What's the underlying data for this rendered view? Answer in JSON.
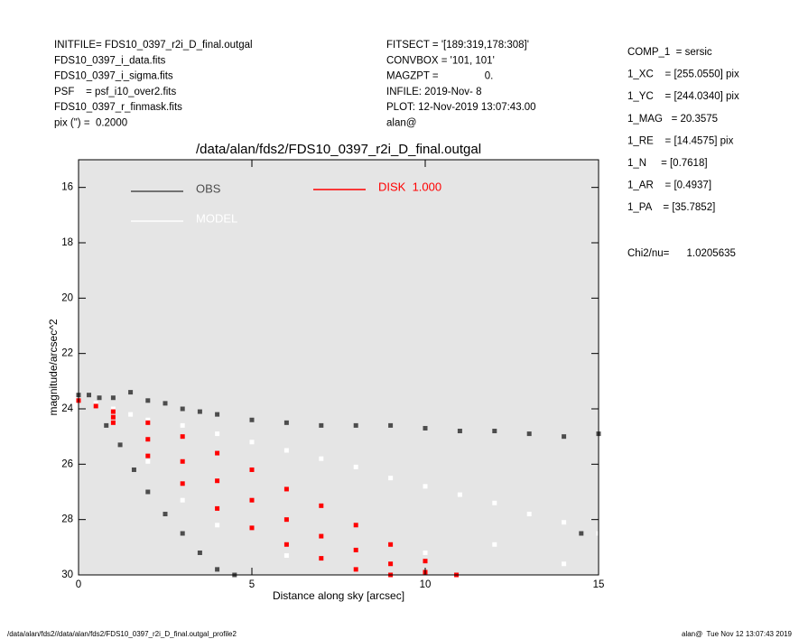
{
  "header": {
    "left": [
      "INITFILE= FDS10_0397_r2i_D_final.outgal",
      "FDS10_0397_i_data.fits",
      "FDS10_0397_i_sigma.fits",
      "PSF    = psf_i10_over2.fits",
      "FDS10_0397_r_finmask.fits",
      "pix (\") =  0.2000"
    ],
    "middle": [
      "FITSECT = '[189:319,178:308]'",
      "CONVBOX = '101, 101'",
      "MAGZPT =                0.",
      "INFILE: 2019-Nov- 8",
      "PLOT: 12-Nov-2019 13:07:43.00",
      "alan@"
    ],
    "right": [
      "COMP_1  = sersic",
      "1_XC    = [255.0550] pix",
      "1_YC    = [244.0340] pix",
      "1_MAG   = 20.3575",
      "1_RE    = [14.4575] pix",
      "1_N     = [0.7618]",
      "1_AR    = [0.4937]",
      "1_PA    = [35.7852]"
    ],
    "chi2": "Chi2/nu=      1.0205635"
  },
  "footer": {
    "left": "/data/alan/fds2//data/alan/fds2/FDS10_0397_r2i_D_final.outgal_profile2",
    "right": "alan@  Tue Nov 12 13:07:43 2019"
  },
  "chart_data": {
    "type": "scatter",
    "title": "/data/alan/fds2/FDS10_0397_r2i_D_final.outgal",
    "x_label": "Distance along sky [arcsec]",
    "y_label": "magnitude/arcsec^2",
    "xlim": [
      0,
      15
    ],
    "ylim": [
      30,
      15
    ],
    "xticks": [
      0,
      5,
      10,
      15
    ],
    "yticks": [
      16,
      18,
      20,
      22,
      24,
      26,
      28,
      30
    ],
    "background": "#e5e5e5",
    "series": [
      {
        "name": "OBS",
        "color": "#4d4d4d",
        "x": [
          0,
          0.3,
          0.6,
          1,
          1.5,
          2,
          2.5,
          3,
          3.5,
          4,
          5,
          6,
          7,
          8,
          9,
          10,
          11,
          12,
          13,
          14,
          15,
          0.8,
          1.2,
          1.6,
          2,
          2.5,
          3,
          3.5,
          4,
          4.5,
          14.5
        ],
        "values": [
          23.5,
          23.5,
          23.6,
          23.6,
          23.4,
          23.7,
          23.8,
          24.0,
          24.1,
          24.2,
          24.4,
          24.5,
          24.6,
          24.6,
          24.6,
          24.7,
          24.8,
          24.8,
          24.9,
          25.0,
          24.9,
          24.6,
          25.3,
          26.2,
          27.0,
          27.8,
          28.5,
          29.2,
          29.8,
          30.0,
          28.5
        ]
      },
      {
        "name": "MODEL",
        "color": "#ffffff",
        "x": [
          0.5,
          1,
          1.5,
          2,
          3,
          4,
          5,
          6,
          7,
          8,
          9,
          10,
          11,
          12,
          13,
          14,
          15,
          2,
          3,
          4,
          6,
          8,
          10,
          12,
          14
        ],
        "values": [
          23.8,
          24.0,
          24.2,
          24.4,
          24.6,
          24.9,
          25.2,
          25.5,
          25.8,
          26.1,
          26.5,
          26.8,
          27.1,
          27.4,
          27.8,
          28.1,
          28.5,
          25.9,
          27.3,
          28.2,
          29.3,
          29.8,
          29.2,
          28.9,
          29.6
        ]
      },
      {
        "name": "DISK  1.000",
        "color": "#ff0000",
        "x": [
          0,
          0.5,
          1,
          2,
          3,
          4,
          5,
          6,
          7,
          8,
          9,
          10,
          10.9,
          1,
          2,
          3,
          4,
          5,
          6,
          7,
          8,
          9,
          1,
          2,
          3,
          4,
          5,
          6,
          7,
          8,
          9,
          10
        ],
        "values": [
          23.7,
          23.9,
          24.1,
          24.5,
          25.0,
          25.6,
          26.2,
          26.9,
          27.5,
          28.2,
          28.9,
          29.5,
          30.0,
          24.5,
          25.7,
          26.7,
          27.6,
          28.3,
          28.9,
          29.4,
          29.8,
          30.0,
          24.3,
          25.1,
          25.9,
          26.6,
          27.3,
          28.0,
          28.6,
          29.1,
          29.6,
          29.9
        ]
      }
    ]
  }
}
